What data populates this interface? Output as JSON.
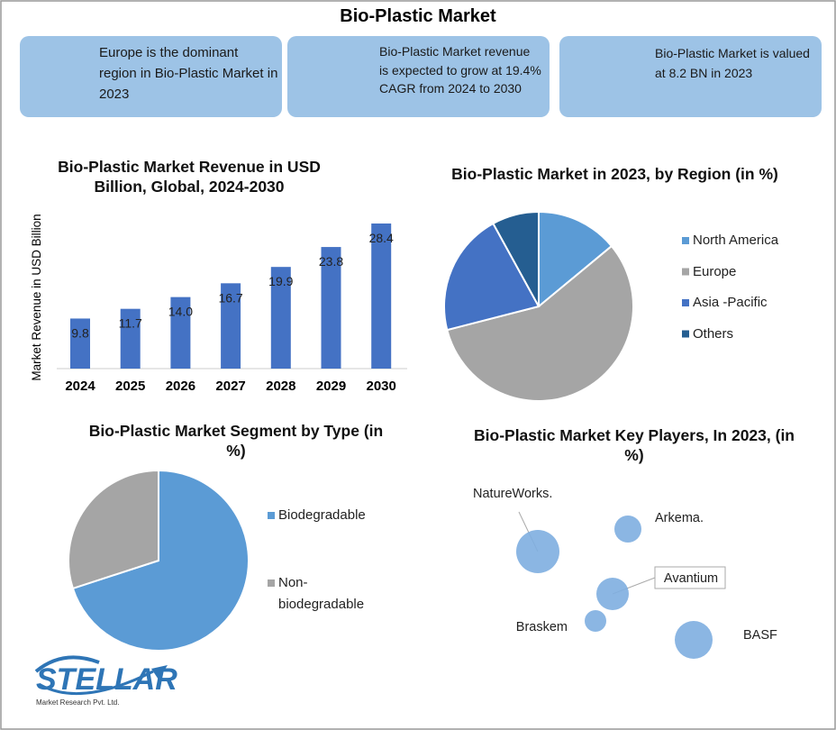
{
  "title": "Bio-Plastic Market",
  "cards": [
    {
      "text": "Europe is the dominant region in Bio-Plastic Market in 2023"
    },
    {
      "text": "Bio-Plastic Market revenue is expected to grow at 19.4% CAGR from 2024 to 2030"
    },
    {
      "text": "Bio-Plastic Market is valued at 8.2 BN in 2023"
    }
  ],
  "chart_data": [
    {
      "type": "bar",
      "title": "Bio-Plastic Market Revenue in USD Billion, Global, 2024-2030",
      "ylabel": "Market Revenue in USD Billion",
      "categories": [
        "2024",
        "2025",
        "2026",
        "2027",
        "2028",
        "2029",
        "2030"
      ],
      "values": [
        9.8,
        11.7,
        14.0,
        16.7,
        19.9,
        23.8,
        28.4
      ],
      "value_labels": [
        "9.8",
        "11.7",
        "14.0",
        "16.7",
        "19.9",
        "23.8",
        "28.4"
      ],
      "color": "#4472c4"
    },
    {
      "type": "pie",
      "title": "Bio-Plastic Market in 2023, by Region (in %)",
      "categories": [
        "North America",
        "Europe",
        "Asia -Pacific",
        "Others"
      ],
      "values": [
        14,
        57,
        21,
        8
      ],
      "colors": [
        "#5b9bd5",
        "#a5a5a5",
        "#4472c4",
        "#255e91"
      ]
    },
    {
      "type": "pie",
      "title": "Bio-Plastic Market Segment by Type (in %)",
      "categories": [
        "Biodegradable",
        "Non-biodegradable"
      ],
      "values": [
        70,
        30
      ],
      "colors": [
        "#5b9bd5",
        "#a5a5a5"
      ]
    },
    {
      "type": "bubble",
      "title": "Bio-Plastic Market Key Players, In 2023, (in %)",
      "categories": [
        "NatureWorks.",
        "Arkema.",
        "Avantium",
        "Braskem",
        "BASF"
      ],
      "color": "#7eaee0"
    }
  ],
  "logo": {
    "name": "STELLAR",
    "tagline": "Market Research Pvt. Ltd."
  }
}
